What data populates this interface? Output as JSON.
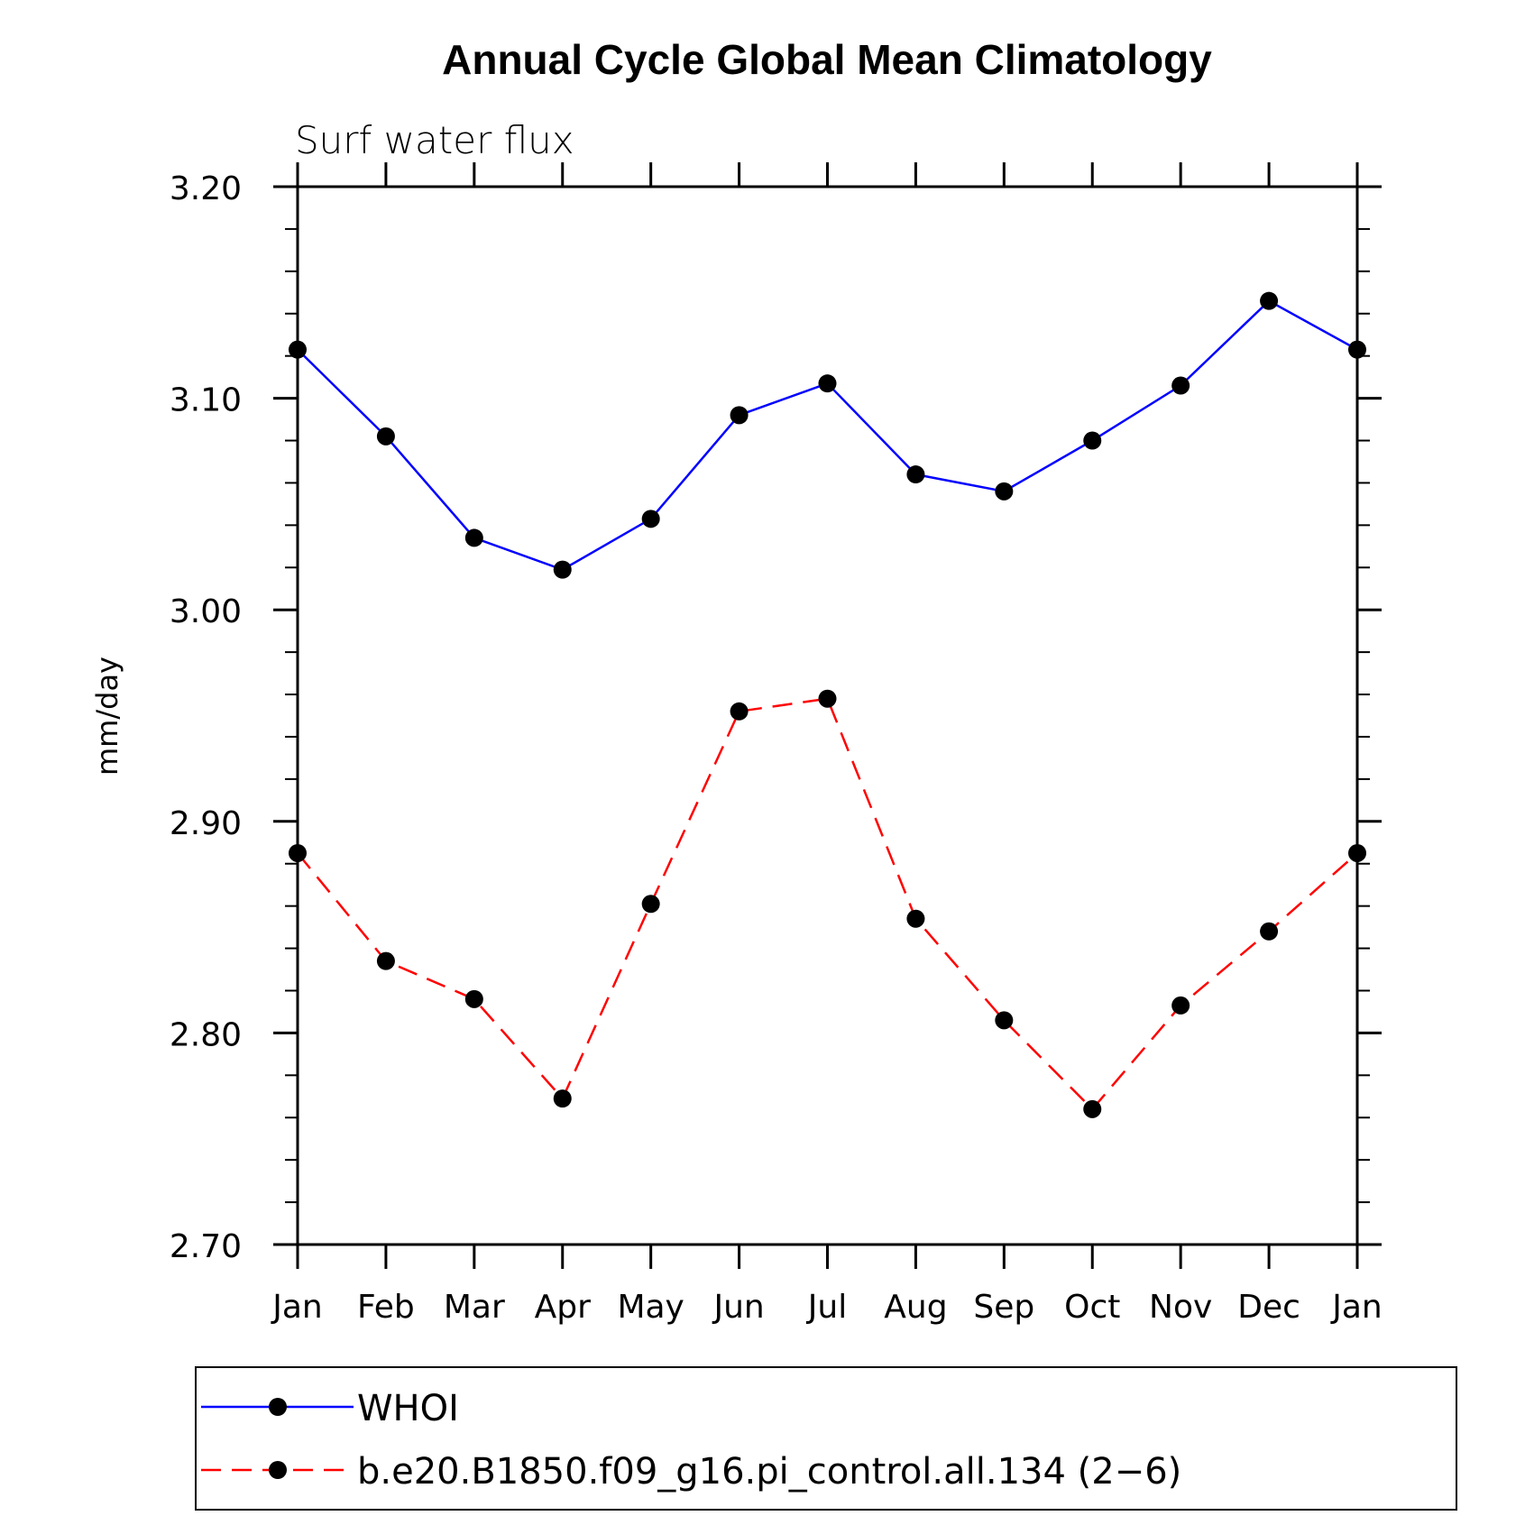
{
  "chart_data": {
    "type": "line",
    "title": "Annual Cycle Global Mean Climatology",
    "subtitle": "Surf water flux",
    "ylabel": "mm/day",
    "xlabel": "",
    "categories": [
      "Jan",
      "Feb",
      "Mar",
      "Apr",
      "May",
      "Jun",
      "Jul",
      "Aug",
      "Sep",
      "Oct",
      "Nov",
      "Dec",
      "Jan"
    ],
    "ylim": [
      2.7,
      3.2
    ],
    "yticks": [
      "2.70",
      "2.80",
      "2.90",
      "3.00",
      "3.10",
      "3.20"
    ],
    "grid": false,
    "legend_position": "bottom",
    "series": [
      {
        "name": "WHOI",
        "color": "#0000ff",
        "line_style": "solid",
        "marker": "filled-circle",
        "values": [
          3.123,
          3.082,
          3.034,
          3.019,
          3.043,
          3.092,
          3.107,
          3.064,
          3.056,
          3.08,
          3.106,
          3.146,
          3.123
        ]
      },
      {
        "name": "b.e20.B1850.f09_g16.pi_control.all.134 (2−6)",
        "color": "#ff0000",
        "line_style": "dashed",
        "marker": "filled-circle",
        "values": [
          2.885,
          2.834,
          2.816,
          2.769,
          2.861,
          2.952,
          2.958,
          2.854,
          2.806,
          2.764,
          2.813,
          2.848,
          2.885
        ]
      }
    ]
  }
}
